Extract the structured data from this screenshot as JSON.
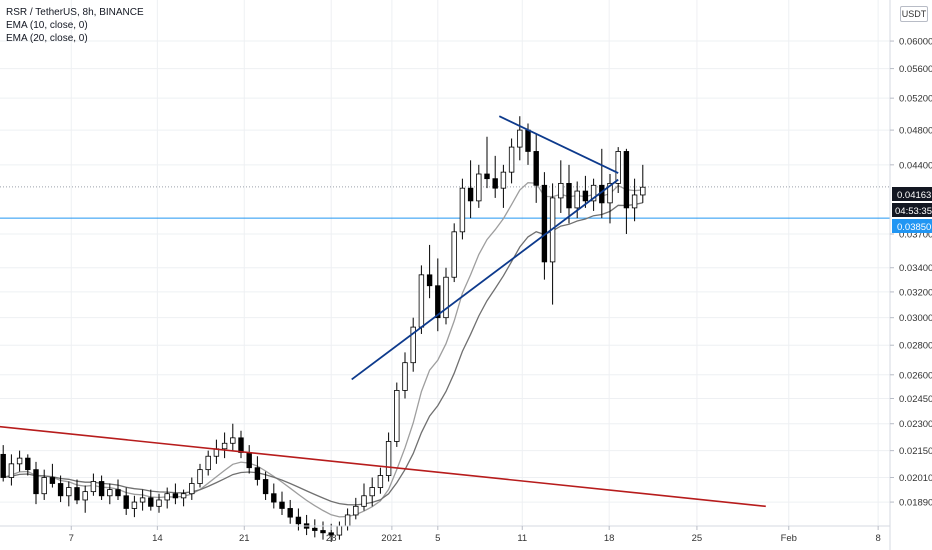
{
  "legend": {
    "title": "RSR / TetherUS, 8h, BINANCE",
    "ema10": "EMA (10, close, 0)",
    "ema20": "EMA (20, close, 0)"
  },
  "currency_badge": "USDT",
  "price_tags": {
    "last_price": "0.04163",
    "countdown": "04:53:35",
    "hline_price": "0.03850"
  },
  "colors": {
    "bull_candle": "#ffffff",
    "bear_candle": "#000000",
    "triangle_lines": "#0d3a8c",
    "trend_line": "#b71c1c",
    "hline": "#2196f3",
    "ema10": "#9e9e9e",
    "ema20": "#707070"
  },
  "chart_data": {
    "type": "candlestick",
    "symbol": "RSR / TetherUS",
    "interval": "8h",
    "exchange": "BINANCE",
    "y_ticks": [
      "0.06000",
      "0.05600",
      "0.05200",
      "0.04800",
      "0.04400",
      "0.04163",
      "0.03850",
      "0.03700",
      "0.03400",
      "0.03200",
      "0.03000",
      "0.02800",
      "0.02600",
      "0.02450",
      "0.02300",
      "0.02150",
      "0.02010",
      "0.01890"
    ],
    "x_ticks": [
      "7",
      "14",
      "21",
      "28",
      "2021",
      "5",
      "11",
      "18",
      "25",
      "Feb",
      "8"
    ],
    "ylim": [
      0.0178,
      0.0665
    ],
    "log_scale": true,
    "last_price": 0.04163,
    "horizontal_line": 0.0385,
    "triangle_upper": [
      {
        "x": 60.5,
        "y": 0.0497
      },
      {
        "x": 75.0,
        "y": 0.0431
      }
    ],
    "triangle_lower": [
      {
        "x": 42.5,
        "y": 0.0257
      },
      {
        "x": 75.0,
        "y": 0.0424
      }
    ],
    "trend_line": [
      {
        "x": -41.0,
        "y": 0.0249
      },
      {
        "x": 93.0,
        "y": 0.0187
      }
    ],
    "candles": [
      [
        0.0213,
        0.0218,
        0.0199,
        0.0201
      ],
      [
        0.0201,
        0.0213,
        0.0197,
        0.0208
      ],
      [
        0.0208,
        0.0215,
        0.0204,
        0.0211
      ],
      [
        0.0211,
        0.0213,
        0.0202,
        0.0205
      ],
      [
        0.0205,
        0.0209,
        0.0188,
        0.0193
      ],
      [
        0.0193,
        0.0205,
        0.019,
        0.0201
      ],
      [
        0.0201,
        0.0208,
        0.0196,
        0.0198
      ],
      [
        0.0198,
        0.0202,
        0.0189,
        0.0192
      ],
      [
        0.0192,
        0.0199,
        0.0187,
        0.0196
      ],
      [
        0.0196,
        0.02,
        0.0188,
        0.019
      ],
      [
        0.019,
        0.0197,
        0.0184,
        0.0194
      ],
      [
        0.0194,
        0.0203,
        0.0192,
        0.0199
      ],
      [
        0.0199,
        0.0202,
        0.019,
        0.0192
      ],
      [
        0.0192,
        0.0198,
        0.0188,
        0.0195
      ],
      [
        0.0195,
        0.02,
        0.019,
        0.0192
      ],
      [
        0.0192,
        0.0196,
        0.0183,
        0.0186
      ],
      [
        0.0186,
        0.0192,
        0.0182,
        0.0189
      ],
      [
        0.0189,
        0.0195,
        0.0185,
        0.0191
      ],
      [
        0.0191,
        0.0195,
        0.0185,
        0.0187
      ],
      [
        0.0187,
        0.0193,
        0.0184,
        0.019
      ],
      [
        0.019,
        0.0196,
        0.0186,
        0.0193
      ],
      [
        0.0193,
        0.0198,
        0.0188,
        0.0191
      ],
      [
        0.0191,
        0.0195,
        0.0187,
        0.0193
      ],
      [
        0.0193,
        0.0201,
        0.019,
        0.0198
      ],
      [
        0.0198,
        0.0208,
        0.0196,
        0.0205
      ],
      [
        0.0205,
        0.0215,
        0.0202,
        0.0212
      ],
      [
        0.0212,
        0.0221,
        0.0208,
        0.0216
      ],
      [
        0.0216,
        0.0225,
        0.0211,
        0.0219
      ],
      [
        0.0219,
        0.023,
        0.0215,
        0.0222
      ],
      [
        0.0222,
        0.0226,
        0.0211,
        0.0214
      ],
      [
        0.0214,
        0.0218,
        0.0203,
        0.0206
      ],
      [
        0.0206,
        0.0212,
        0.0197,
        0.02
      ],
      [
        0.02,
        0.0204,
        0.019,
        0.0193
      ],
      [
        0.0193,
        0.0198,
        0.0186,
        0.0189
      ],
      [
        0.0189,
        0.0194,
        0.0183,
        0.0186
      ],
      [
        0.0186,
        0.019,
        0.0179,
        0.0182
      ],
      [
        0.0182,
        0.0186,
        0.0176,
        0.0179
      ],
      [
        0.0179,
        0.0183,
        0.0174,
        0.0177
      ],
      [
        0.0177,
        0.0181,
        0.0173,
        0.0176
      ],
      [
        0.0176,
        0.018,
        0.0172,
        0.0175
      ],
      [
        0.0175,
        0.0179,
        0.0171,
        0.0174
      ],
      [
        0.0174,
        0.018,
        0.0172,
        0.0178
      ],
      [
        0.0178,
        0.0186,
        0.0176,
        0.0183
      ],
      [
        0.0183,
        0.0191,
        0.0181,
        0.0187
      ],
      [
        0.0187,
        0.0198,
        0.0185,
        0.0192
      ],
      [
        0.0192,
        0.0201,
        0.0187,
        0.0196
      ],
      [
        0.0196,
        0.0206,
        0.0193,
        0.0202
      ],
      [
        0.0202,
        0.0225,
        0.0199,
        0.022
      ],
      [
        0.022,
        0.0255,
        0.0217,
        0.025
      ],
      [
        0.025,
        0.0275,
        0.0245,
        0.0268
      ],
      [
        0.0268,
        0.03,
        0.0262,
        0.0293
      ],
      [
        0.0293,
        0.0342,
        0.0288,
        0.0334
      ],
      [
        0.0334,
        0.036,
        0.0315,
        0.0325
      ],
      [
        0.0325,
        0.0348,
        0.029,
        0.03
      ],
      [
        0.03,
        0.034,
        0.0295,
        0.0332
      ],
      [
        0.0332,
        0.038,
        0.0328,
        0.0372
      ],
      [
        0.0372,
        0.0425,
        0.0365,
        0.0415
      ],
      [
        0.0415,
        0.0445,
        0.0385,
        0.0402
      ],
      [
        0.0402,
        0.044,
        0.0395,
        0.043
      ],
      [
        0.043,
        0.0472,
        0.0415,
        0.0425
      ],
      [
        0.0425,
        0.045,
        0.0405,
        0.0415
      ],
      [
        0.0415,
        0.044,
        0.0395,
        0.0432
      ],
      [
        0.0432,
        0.047,
        0.042,
        0.046
      ],
      [
        0.046,
        0.0497,
        0.0445,
        0.048
      ],
      [
        0.048,
        0.0488,
        0.044,
        0.0455
      ],
      [
        0.0455,
        0.0475,
        0.04,
        0.0418
      ],
      [
        0.0418,
        0.0432,
        0.033,
        0.0345
      ],
      [
        0.0345,
        0.042,
        0.031,
        0.0405
      ],
      [
        0.0405,
        0.0445,
        0.039,
        0.042
      ],
      [
        0.042,
        0.044,
        0.038,
        0.0395
      ],
      [
        0.0395,
        0.0422,
        0.0385,
        0.0412
      ],
      [
        0.0412,
        0.0428,
        0.0395,
        0.0402
      ],
      [
        0.0402,
        0.0425,
        0.0392,
        0.0418
      ],
      [
        0.0418,
        0.0458,
        0.0385,
        0.04
      ],
      [
        0.04,
        0.043,
        0.038,
        0.042
      ],
      [
        0.042,
        0.046,
        0.041,
        0.0455
      ],
      [
        0.0455,
        0.0458,
        0.037,
        0.0395
      ],
      [
        0.0395,
        0.0425,
        0.0382,
        0.0408
      ],
      [
        0.0408,
        0.044,
        0.04,
        0.0416
      ]
    ]
  }
}
